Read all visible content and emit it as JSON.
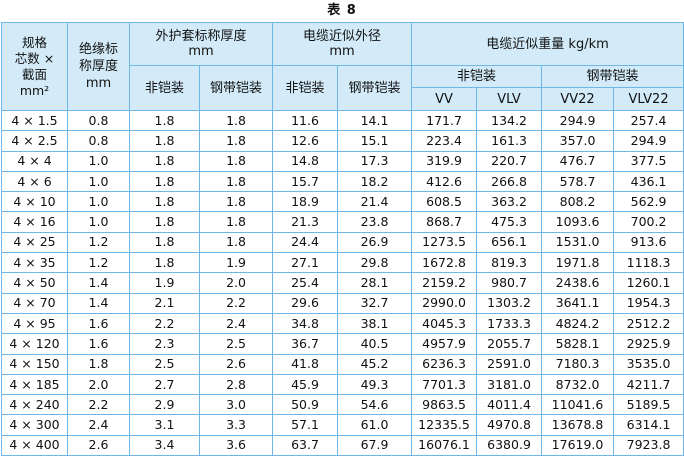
{
  "title": "表 8",
  "headers": {
    "spec": "规格\n芯数 ×\n截面\nmm²",
    "insulation": "绝缘标\n称厚度\nmm",
    "sheath": "外护套标称厚度",
    "sheath_unit": "mm",
    "diameter": "电缆近似外径",
    "diameter_unit": "mm",
    "weight": "电缆近似重量 kg/km",
    "unarmored": "非铠装",
    "armored": "钢带铠装",
    "sub_unarmored": "非铠装",
    "sub_armored": "钢带铠装",
    "vv": "VV",
    "vlv": "VLV",
    "vv22": "VV22",
    "vlv22": "VLV22"
  },
  "rows": [
    [
      "4 × 1.5",
      "0.8",
      "1.8",
      "1.8",
      "11.6",
      "14.1",
      "171.7",
      "134.2",
      "294.9",
      "257.4"
    ],
    [
      "4 × 2.5",
      "0.8",
      "1.8",
      "1.8",
      "12.6",
      "15.1",
      "223.4",
      "161.3",
      "357.0",
      "294.9"
    ],
    [
      "4 × 4",
      "1.0",
      "1.8",
      "1.8",
      "14.8",
      "17.3",
      "319.9",
      "220.7",
      "476.7",
      "377.5"
    ],
    [
      "4 × 6",
      "1.0",
      "1.8",
      "1.8",
      "15.7",
      "18.2",
      "412.6",
      "266.8",
      "578.7",
      "436.1"
    ],
    [
      "4 × 10",
      "1.0",
      "1.8",
      "1.8",
      "18.9",
      "21.4",
      "608.5",
      "363.2",
      "808.2",
      "562.9"
    ],
    [
      "4 × 16",
      "1.0",
      "1.8",
      "1.8",
      "21.3",
      "23.8",
      "868.7",
      "475.3",
      "1093.6",
      "700.2"
    ],
    [
      "4 × 25",
      "1.2",
      "1.8",
      "1.8",
      "24.4",
      "26.9",
      "1273.5",
      "656.1",
      "1531.0",
      "913.6"
    ],
    [
      "4 × 35",
      "1.2",
      "1.8",
      "1.9",
      "27.1",
      "29.8",
      "1672.8",
      "819.3",
      "1971.8",
      "1118.3"
    ],
    [
      "4 × 50",
      "1.4",
      "1.9",
      "2.0",
      "25.4",
      "28.1",
      "2159.2",
      "980.7",
      "2438.6",
      "1260.1"
    ],
    [
      "4 × 70",
      "1.4",
      "2.1",
      "2.2",
      "29.6",
      "32.7",
      "2990.0",
      "1303.2",
      "3641.1",
      "1954.3"
    ],
    [
      "4 × 95",
      "1.6",
      "2.2",
      "2.4",
      "34.8",
      "38.1",
      "4045.3",
      "1733.3",
      "4824.2",
      "2512.2"
    ],
    [
      "4 × 120",
      "1.6",
      "2.3",
      "2.5",
      "36.7",
      "40.5",
      "4957.9",
      "2055.7",
      "5828.1",
      "2925.9"
    ],
    [
      "4 × 150",
      "1.8",
      "2.5",
      "2.6",
      "41.8",
      "45.2",
      "6236.3",
      "2591.0",
      "7180.3",
      "3535.0"
    ],
    [
      "4 × 185",
      "2.0",
      "2.7",
      "2.8",
      "45.9",
      "49.3",
      "7701.3",
      "3181.0",
      "8732.0",
      "4211.7"
    ],
    [
      "4 × 240",
      "2.2",
      "2.9",
      "3.0",
      "50.9",
      "54.6",
      "9863.5",
      "4011.4",
      "11041.6",
      "5189.5"
    ],
    [
      "4 × 300",
      "2.4",
      "3.1",
      "3.3",
      "57.1",
      "61.0",
      "12335.5",
      "4970.8",
      "13678.8",
      "6314.1"
    ],
    [
      "4 × 400",
      "2.6",
      "3.4",
      "3.6",
      "63.7",
      "67.9",
      "16076.1",
      "6380.9",
      "17619.0",
      "7923.8"
    ]
  ]
}
